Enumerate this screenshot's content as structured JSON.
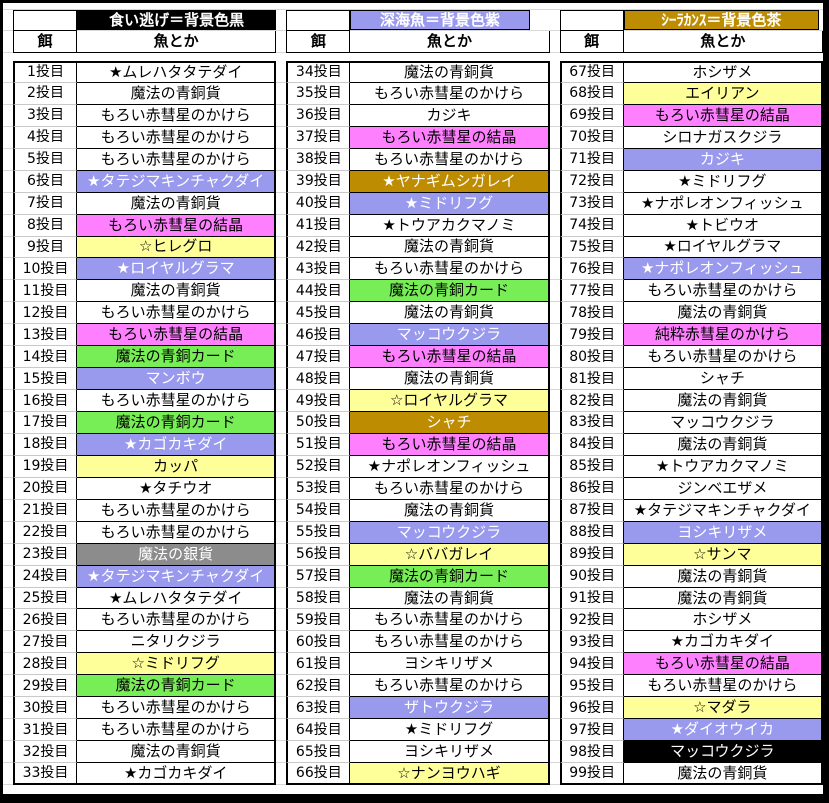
{
  "palette": {
    "plain": {
      "bg": "#FFFFFF",
      "fg": "#000000"
    },
    "yellow": {
      "bg": "#FFFF99",
      "fg": "#000000"
    },
    "pink": {
      "bg": "#FF80FF",
      "fg": "#000000"
    },
    "violet": {
      "bg": "#9999EE",
      "fg": "#FFFFFF"
    },
    "green": {
      "bg": "#77EE55",
      "fg": "#000000"
    },
    "gold": {
      "bg": "#BE8C00",
      "fg": "#FFFFFF"
    },
    "black": {
      "bg": "#000000",
      "fg": "#FFFFFF"
    },
    "silver": {
      "bg": "#8C8C8C",
      "fg": "#FFFFFF"
    }
  },
  "groups": [
    {
      "title": "食い逃げ＝背景色黒",
      "title_style": "black",
      "bait_header": "餌",
      "fish_header": "魚とか",
      "rows": [
        {
          "cast": "1投目",
          "fish": "★ムレハタタテダイ",
          "style": "plain"
        },
        {
          "cast": "2投目",
          "fish": "魔法の青銅貨",
          "style": "plain"
        },
        {
          "cast": "3投目",
          "fish": "もろい赤彗星のかけら",
          "style": "plain"
        },
        {
          "cast": "4投目",
          "fish": "もろい赤彗星のかけら",
          "style": "plain"
        },
        {
          "cast": "5投目",
          "fish": "もろい赤彗星のかけら",
          "style": "plain"
        },
        {
          "cast": "6投目",
          "fish": "★タテジマキンチャクダイ",
          "style": "violet"
        },
        {
          "cast": "7投目",
          "fish": "魔法の青銅貨",
          "style": "plain"
        },
        {
          "cast": "8投目",
          "fish": "もろい赤彗星の結晶",
          "style": "pink"
        },
        {
          "cast": "9投目",
          "fish": "☆ヒレグロ",
          "style": "yellow"
        },
        {
          "cast": "10投目",
          "fish": "★ロイヤルグラマ",
          "style": "violet"
        },
        {
          "cast": "11投目",
          "fish": "魔法の青銅貨",
          "style": "plain"
        },
        {
          "cast": "12投目",
          "fish": "もろい赤彗星のかけら",
          "style": "plain"
        },
        {
          "cast": "13投目",
          "fish": "もろい赤彗星の結晶",
          "style": "pink"
        },
        {
          "cast": "14投目",
          "fish": "魔法の青銅カード",
          "style": "green"
        },
        {
          "cast": "15投目",
          "fish": "マンボウ",
          "style": "violet"
        },
        {
          "cast": "16投目",
          "fish": "もろい赤彗星のかけら",
          "style": "plain"
        },
        {
          "cast": "17投目",
          "fish": "魔法の青銅カード",
          "style": "green"
        },
        {
          "cast": "18投目",
          "fish": "★カゴカキダイ",
          "style": "violet"
        },
        {
          "cast": "19投目",
          "fish": "カッパ",
          "style": "yellow"
        },
        {
          "cast": "20投目",
          "fish": "★タチウオ",
          "style": "plain"
        },
        {
          "cast": "21投目",
          "fish": "もろい赤彗星のかけら",
          "style": "plain"
        },
        {
          "cast": "22投目",
          "fish": "もろい赤彗星のかけら",
          "style": "plain"
        },
        {
          "cast": "23投目",
          "fish": "魔法の銀貨",
          "style": "silver"
        },
        {
          "cast": "24投目",
          "fish": "★タテジマキンチャクダイ",
          "style": "violet"
        },
        {
          "cast": "25投目",
          "fish": "★ムレハタタテダイ",
          "style": "plain"
        },
        {
          "cast": "26投目",
          "fish": "もろい赤彗星のかけら",
          "style": "plain"
        },
        {
          "cast": "27投目",
          "fish": "ニタリクジラ",
          "style": "plain"
        },
        {
          "cast": "28投目",
          "fish": "☆ミドリフグ",
          "style": "yellow"
        },
        {
          "cast": "29投目",
          "fish": "魔法の青銅カード",
          "style": "green"
        },
        {
          "cast": "30投目",
          "fish": "もろい赤彗星のかけら",
          "style": "plain"
        },
        {
          "cast": "31投目",
          "fish": "もろい赤彗星のかけら",
          "style": "plain"
        },
        {
          "cast": "32投目",
          "fish": "魔法の青銅貨",
          "style": "plain"
        },
        {
          "cast": "33投目",
          "fish": "★カゴカキダイ",
          "style": "plain"
        }
      ]
    },
    {
      "title": "深海魚＝背景色紫",
      "title_style": "violet",
      "bait_header": "餌",
      "fish_header": "魚とか",
      "rows": [
        {
          "cast": "34投目",
          "fish": "魔法の青銅貨",
          "style": "plain"
        },
        {
          "cast": "35投目",
          "fish": "もろい赤彗星のかけら",
          "style": "plain"
        },
        {
          "cast": "36投目",
          "fish": "カジキ",
          "style": "plain"
        },
        {
          "cast": "37投目",
          "fish": "もろい赤彗星の結晶",
          "style": "pink"
        },
        {
          "cast": "38投目",
          "fish": "もろい赤彗星のかけら",
          "style": "plain"
        },
        {
          "cast": "39投目",
          "fish": "★ヤナギムシガレイ",
          "style": "gold"
        },
        {
          "cast": "40投目",
          "fish": "★ミドリフグ",
          "style": "violet"
        },
        {
          "cast": "41投目",
          "fish": "★トウアカクマノミ",
          "style": "plain"
        },
        {
          "cast": "42投目",
          "fish": "魔法の青銅貨",
          "style": "plain"
        },
        {
          "cast": "43投目",
          "fish": "もろい赤彗星のかけら",
          "style": "plain"
        },
        {
          "cast": "44投目",
          "fish": "魔法の青銅カード",
          "style": "green"
        },
        {
          "cast": "45投目",
          "fish": "魔法の青銅貨",
          "style": "plain"
        },
        {
          "cast": "46投目",
          "fish": "マッコウクジラ",
          "style": "violet"
        },
        {
          "cast": "47投目",
          "fish": "もろい赤彗星の結晶",
          "style": "pink"
        },
        {
          "cast": "48投目",
          "fish": "魔法の青銅貨",
          "style": "plain"
        },
        {
          "cast": "49投目",
          "fish": "☆ロイヤルグラマ",
          "style": "yellow"
        },
        {
          "cast": "50投目",
          "fish": "シャチ",
          "style": "gold"
        },
        {
          "cast": "51投目",
          "fish": "もろい赤彗星の結晶",
          "style": "pink"
        },
        {
          "cast": "52投目",
          "fish": "★ナポレオンフィッシュ",
          "style": "plain"
        },
        {
          "cast": "53投目",
          "fish": "もろい赤彗星のかけら",
          "style": "plain"
        },
        {
          "cast": "54投目",
          "fish": "魔法の青銅貨",
          "style": "plain"
        },
        {
          "cast": "55投目",
          "fish": "マッコウクジラ",
          "style": "violet"
        },
        {
          "cast": "56投目",
          "fish": "☆ババガレイ",
          "style": "yellow"
        },
        {
          "cast": "57投目",
          "fish": "魔法の青銅カード",
          "style": "green"
        },
        {
          "cast": "58投目",
          "fish": "魔法の青銅貨",
          "style": "plain"
        },
        {
          "cast": "59投目",
          "fish": "もろい赤彗星のかけら",
          "style": "plain"
        },
        {
          "cast": "60投目",
          "fish": "もろい赤彗星のかけら",
          "style": "plain"
        },
        {
          "cast": "61投目",
          "fish": "ヨシキリザメ",
          "style": "plain"
        },
        {
          "cast": "62投目",
          "fish": "もろい赤彗星のかけら",
          "style": "plain"
        },
        {
          "cast": "63投目",
          "fish": "ザトウクジラ",
          "style": "violet"
        },
        {
          "cast": "64投目",
          "fish": "★ミドリフグ",
          "style": "plain"
        },
        {
          "cast": "65投目",
          "fish": "ヨシキリザメ",
          "style": "plain"
        },
        {
          "cast": "66投目",
          "fish": "☆ナンヨウハギ",
          "style": "yellow"
        }
      ]
    },
    {
      "title": "ｼｰﾗｶﾝｽ＝背景色茶",
      "title_style": "gold",
      "bait_header": "餌",
      "fish_header": "魚とか",
      "rows": [
        {
          "cast": "67投目",
          "fish": "ホシザメ",
          "style": "plain"
        },
        {
          "cast": "68投目",
          "fish": "エイリアン",
          "style": "yellow"
        },
        {
          "cast": "69投目",
          "fish": "もろい赤彗星の結晶",
          "style": "pink"
        },
        {
          "cast": "70投目",
          "fish": "シロナガスクジラ",
          "style": "plain"
        },
        {
          "cast": "71投目",
          "fish": "カジキ",
          "style": "violet"
        },
        {
          "cast": "72投目",
          "fish": "★ミドリフグ",
          "style": "plain"
        },
        {
          "cast": "73投目",
          "fish": "★ナポレオンフィッシュ",
          "style": "plain"
        },
        {
          "cast": "74投目",
          "fish": "★トビウオ",
          "style": "plain"
        },
        {
          "cast": "75投目",
          "fish": "★ロイヤルグラマ",
          "style": "plain"
        },
        {
          "cast": "76投目",
          "fish": "★ナポレオンフィッシュ",
          "style": "violet"
        },
        {
          "cast": "77投目",
          "fish": "もろい赤彗星のかけら",
          "style": "plain"
        },
        {
          "cast": "78投目",
          "fish": "魔法の青銅貨",
          "style": "plain"
        },
        {
          "cast": "79投目",
          "fish": "純粋赤彗星のかけら",
          "style": "pink"
        },
        {
          "cast": "80投目",
          "fish": "もろい赤彗星のかけら",
          "style": "plain"
        },
        {
          "cast": "81投目",
          "fish": "シャチ",
          "style": "plain"
        },
        {
          "cast": "82投目",
          "fish": "魔法の青銅貨",
          "style": "plain"
        },
        {
          "cast": "83投目",
          "fish": "マッコウクジラ",
          "style": "plain"
        },
        {
          "cast": "84投目",
          "fish": "魔法の青銅貨",
          "style": "plain"
        },
        {
          "cast": "85投目",
          "fish": "★トウアカクマノミ",
          "style": "plain"
        },
        {
          "cast": "86投目",
          "fish": "ジンベエザメ",
          "style": "plain"
        },
        {
          "cast": "87投目",
          "fish": "★タテジマキンチャクダイ",
          "style": "plain"
        },
        {
          "cast": "88投目",
          "fish": "ヨシキリザメ",
          "style": "violet"
        },
        {
          "cast": "89投目",
          "fish": "☆サンマ",
          "style": "yellow"
        },
        {
          "cast": "90投目",
          "fish": "魔法の青銅貨",
          "style": "plain"
        },
        {
          "cast": "91投目",
          "fish": "魔法の青銅貨",
          "style": "plain"
        },
        {
          "cast": "92投目",
          "fish": "ホシザメ",
          "style": "plain"
        },
        {
          "cast": "93投目",
          "fish": "★カゴカキダイ",
          "style": "plain"
        },
        {
          "cast": "94投目",
          "fish": "もろい赤彗星の結晶",
          "style": "pink"
        },
        {
          "cast": "95投目",
          "fish": "もろい赤彗星のかけら",
          "style": "plain"
        },
        {
          "cast": "96投目",
          "fish": "☆マダラ",
          "style": "yellow"
        },
        {
          "cast": "97投目",
          "fish": "★ダイオウイカ",
          "style": "violet"
        },
        {
          "cast": "98投目",
          "fish": "マッコウクジラ",
          "style": "black"
        },
        {
          "cast": "99投目",
          "fish": "魔法の青銅貨",
          "style": "plain"
        }
      ]
    }
  ]
}
